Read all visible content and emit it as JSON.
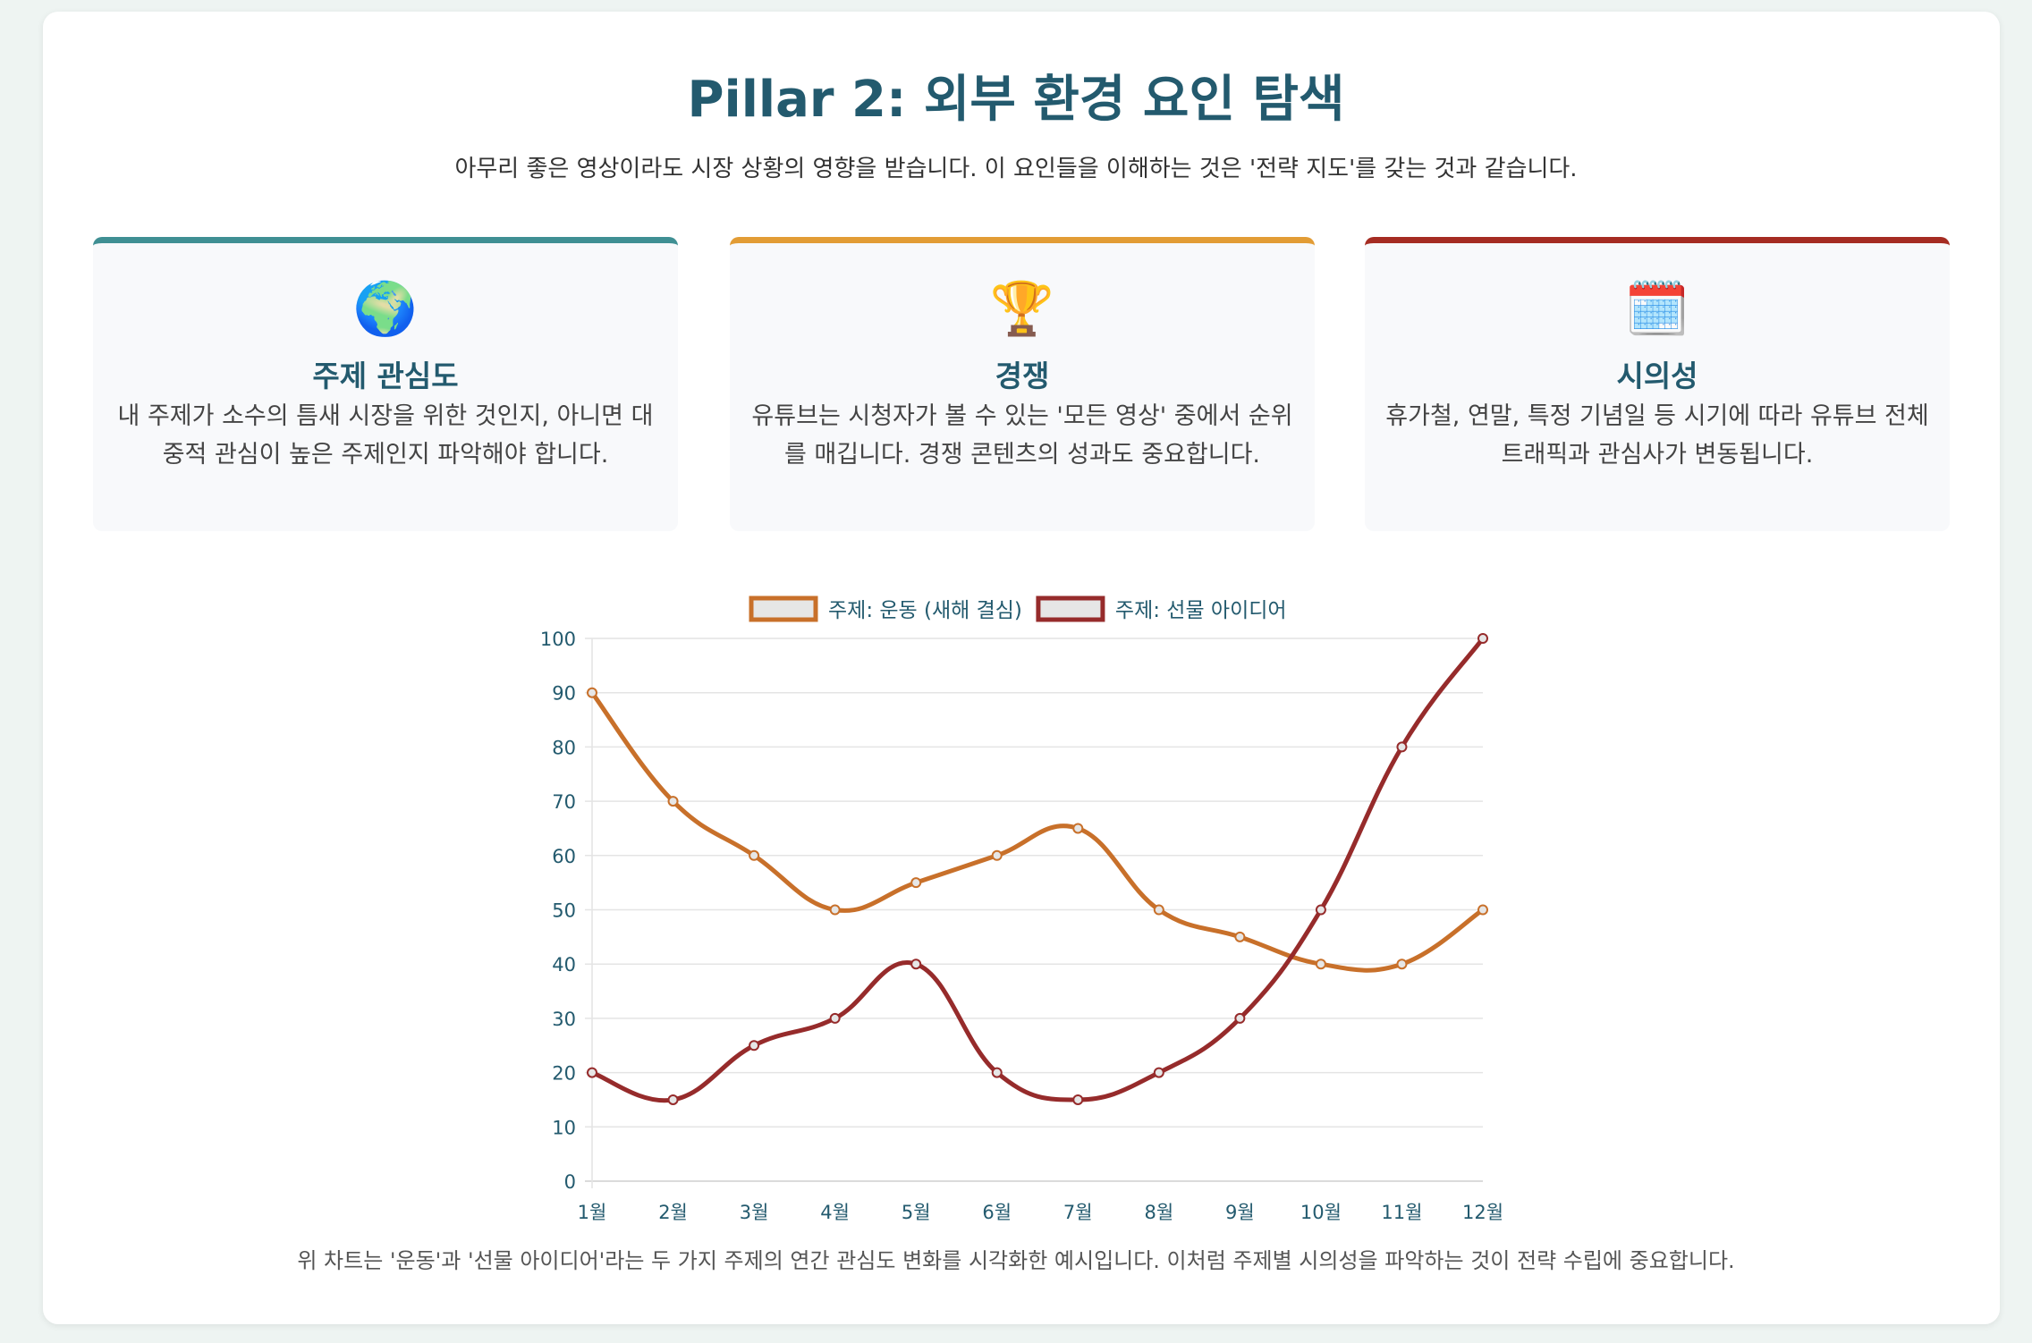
{
  "header": {
    "title": "Pillar 2: 외부 환경 요인 탐색",
    "subtitle": "아무리 좋은 영상이라도 시장 상황의 영향을 받습니다. 이 요인들을 이해하는 것은 '전략 지도'를 갖는 것과 같습니다."
  },
  "cards": [
    {
      "icon": "globe-icon",
      "emoji": "🌍",
      "title": "주제 관심도",
      "text": "내 주제가 소수의 틈새 시장을 위한 것인지, 아니면 대중적 관심이 높은 주제인지 파악해야 합니다.",
      "color": "#3f8f93"
    },
    {
      "icon": "trophy-icon",
      "emoji": "🏆",
      "title": "경쟁",
      "text": "유튜브는 시청자가 볼 수 있는 '모든 영상' 중에서 순위를 매깁니다. 경쟁 콘텐츠의 성과도 중요합니다.",
      "color": "#e29c35"
    },
    {
      "icon": "calendar-icon",
      "emoji": "🗓️",
      "title": "시의성",
      "text": "휴가철, 연말, 특정 기념일 등 시기에 따라 유튜브 전체 트래픽과 관심사가 변동됩니다.",
      "color": "#a52c22"
    }
  ],
  "chart_data": {
    "type": "line",
    "categories": [
      "1월",
      "2월",
      "3월",
      "4월",
      "5월",
      "6월",
      "7월",
      "8월",
      "9월",
      "10월",
      "11월",
      "12월"
    ],
    "series": [
      {
        "name": "주제: 운동 (새해 결심)",
        "values": [
          90,
          70,
          60,
          50,
          55,
          60,
          65,
          50,
          45,
          40,
          40,
          50
        ],
        "color": "#c8702a"
      },
      {
        "name": "주제: 선물 아이디어",
        "values": [
          20,
          15,
          25,
          30,
          40,
          20,
          15,
          20,
          30,
          50,
          80,
          100
        ],
        "color": "#962b2b"
      }
    ],
    "ylim": [
      0,
      100
    ],
    "yticks": [
      "0",
      "10",
      "20",
      "30",
      "40",
      "50",
      "60",
      "70",
      "80",
      "90",
      "100"
    ],
    "grid": true,
    "legend": "top",
    "smooth": true
  },
  "caption": "위 차트는 '운동'과 '선물 아이디어'라는 두 가지 주제의 연간 관심도 변화를 시각화한 예시입니다. 이처럼 주제별 시의성을 파악하는 것이 전략 수립에 중요합니다."
}
